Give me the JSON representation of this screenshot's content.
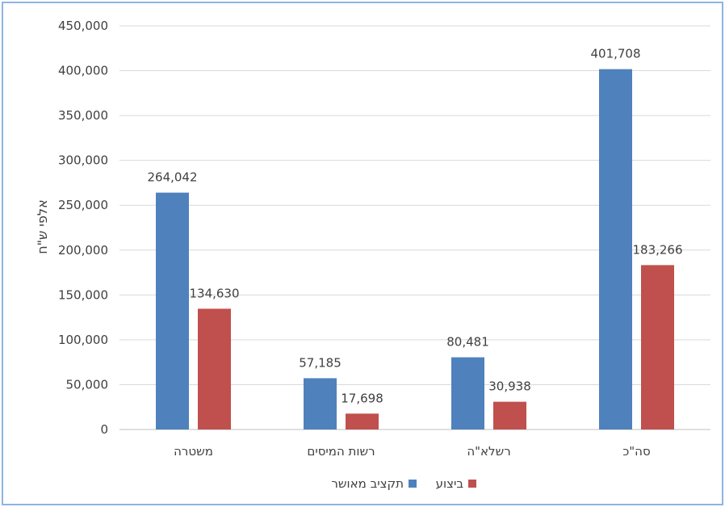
{
  "chart_data": {
    "type": "bar",
    "categories": [
      "משטרה",
      "רשות המיסים",
      "רשלא\"ה",
      "סה\"כ"
    ],
    "series": [
      {
        "name": "תקציב מאושר",
        "values": [
          264042,
          57185,
          80481,
          401708
        ],
        "color": "#4F81BD"
      },
      {
        "name": "ביצוע",
        "values": [
          134630,
          17698,
          30938,
          183266
        ],
        "color": "#C0504D"
      }
    ],
    "title": "",
    "xlabel": "",
    "ylabel": "אלפי ש\"ח",
    "ylim": [
      0,
      450000
    ],
    "yticks": [
      0,
      50000,
      100000,
      150000,
      200000,
      250000,
      300000,
      350000,
      400000,
      450000
    ],
    "grid": true,
    "legend_position": "bottom",
    "colors": {
      "gridline": "#D9D9D9",
      "axis_line": "#BFBFBF",
      "frame_border": "#8EB4E3",
      "text": "#404040"
    }
  }
}
